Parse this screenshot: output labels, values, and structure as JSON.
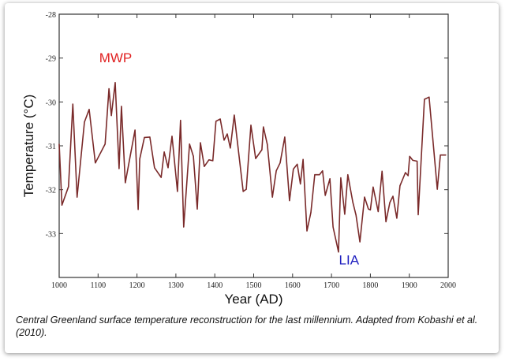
{
  "chart_data": {
    "type": "line",
    "title": "",
    "xlabel": "Year (AD)",
    "ylabel": "Temperature (°C)",
    "xlim": [
      1000,
      2000
    ],
    "ylim": [
      -34,
      -28
    ],
    "xticks": [
      1000,
      1100,
      1200,
      1300,
      1400,
      1500,
      1600,
      1700,
      1800,
      1900,
      2000
    ],
    "yticks": [
      -28,
      -29,
      -30,
      -31,
      -32,
      -33
    ],
    "grid": false,
    "line_color": "#7a2a2a",
    "annotations": [
      {
        "text": "MWP",
        "year": 1145,
        "temp": -29.1,
        "color": "#e02020"
      },
      {
        "text": "LIA",
        "year": 1745,
        "temp": -33.7,
        "color": "#2020c0"
      }
    ],
    "series": [
      {
        "name": "Central Greenland surface temperature",
        "x": [
          1000,
          1007,
          1024,
          1035,
          1046,
          1065,
          1077,
          1093,
          1118,
          1128,
          1134,
          1144,
          1154,
          1160,
          1170,
          1195,
          1203,
          1207,
          1219,
          1233,
          1245,
          1262,
          1270,
          1280,
          1290,
          1304,
          1312,
          1320,
          1335,
          1345,
          1355,
          1363,
          1373,
          1385,
          1395,
          1403,
          1414,
          1424,
          1432,
          1440,
          1450,
          1473,
          1481,
          1493,
          1505,
          1521,
          1525,
          1535,
          1548,
          1558,
          1568,
          1580,
          1592,
          1602,
          1612,
          1620,
          1627,
          1637,
          1647,
          1657,
          1669,
          1677,
          1684,
          1696,
          1704,
          1718,
          1724,
          1734,
          1742,
          1755,
          1763,
          1773,
          1785,
          1795,
          1800,
          1807,
          1820,
          1830,
          1840,
          1850,
          1858,
          1868,
          1876,
          1890,
          1897,
          1901,
          1909,
          1920,
          1923,
          1939,
          1951,
          1972,
          1980,
          1994
        ],
        "y": [
          -30.96,
          -32.35,
          -31.93,
          -30.05,
          -32.17,
          -30.46,
          -30.17,
          -31.39,
          -30.96,
          -29.7,
          -30.31,
          -29.56,
          -31.52,
          -30.1,
          -31.84,
          -30.64,
          -32.45,
          -31.3,
          -30.81,
          -30.8,
          -31.5,
          -31.72,
          -31.14,
          -31.5,
          -30.78,
          -32.04,
          -30.42,
          -32.85,
          -30.96,
          -31.24,
          -32.44,
          -30.93,
          -31.47,
          -31.32,
          -31.34,
          -30.44,
          -30.39,
          -30.87,
          -30.73,
          -31.05,
          -30.3,
          -32.04,
          -31.99,
          -30.53,
          -31.29,
          -31.09,
          -30.57,
          -30.97,
          -32.17,
          -31.57,
          -31.39,
          -30.8,
          -32.25,
          -31.53,
          -31.42,
          -31.87,
          -31.31,
          -32.94,
          -32.52,
          -31.66,
          -31.66,
          -31.57,
          -32.13,
          -31.75,
          -32.85,
          -33.42,
          -31.73,
          -32.56,
          -31.66,
          -32.29,
          -32.58,
          -33.19,
          -32.17,
          -32.44,
          -32.46,
          -31.94,
          -32.5,
          -31.58,
          -32.73,
          -32.29,
          -32.15,
          -32.65,
          -31.91,
          -31.61,
          -31.68,
          -31.24,
          -31.33,
          -31.35,
          -32.57,
          -29.94,
          -29.89,
          -31.99,
          -31.21,
          -31.21
        ]
      }
    ]
  },
  "caption": "Central Greenland surface temperature reconstruction for the last millennium. Adapted from Kobashi et al. (2010)."
}
